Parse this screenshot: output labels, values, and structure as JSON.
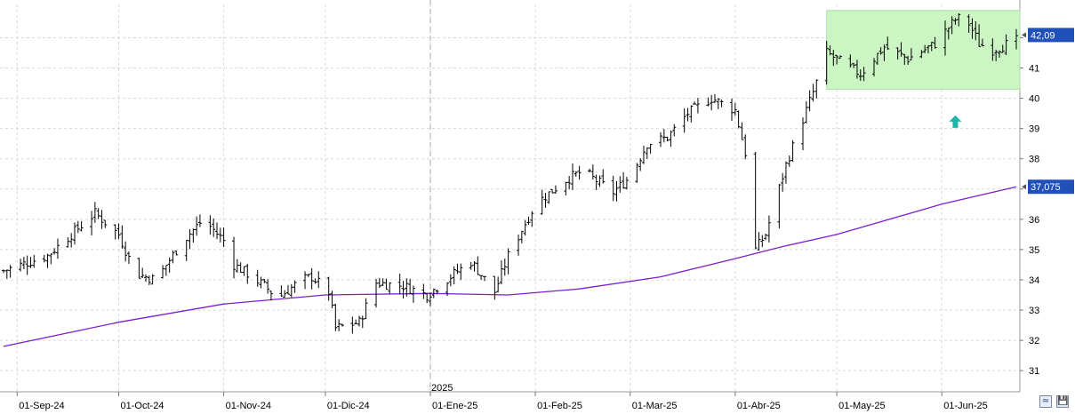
{
  "chart_data": {
    "type": "ohlc",
    "grid": true,
    "ylim": [
      30.3,
      43.1
    ],
    "y_ticks": [
      "31",
      "32",
      "33",
      "34",
      "35",
      "36",
      "37",
      "38",
      "39",
      "40",
      "41",
      "42"
    ],
    "x_labels": [
      {
        "date": "2024-09-01",
        "label": "01-Sep-24"
      },
      {
        "date": "2024-10-01",
        "label": "01-Oct-24"
      },
      {
        "date": "2024-11-01",
        "label": "01-Nov-24"
      },
      {
        "date": "2024-12-01",
        "label": "01-Dic-24"
      },
      {
        "date": "2025-01-01",
        "label": "01-Ene-25"
      },
      {
        "date": "2025-02-01",
        "label": "01-Feb-25"
      },
      {
        "date": "2025-03-01",
        "label": "01-Mar-25"
      },
      {
        "date": "2025-04-01",
        "label": "01-Abr-25"
      },
      {
        "date": "2025-05-01",
        "label": "01-May-25"
      },
      {
        "date": "2025-06-01",
        "label": "01-Jun-25"
      }
    ],
    "year_marker": {
      "date": "2025-01-01",
      "label": "2025"
    },
    "date_range": [
      "2024-08-28",
      "2025-06-23"
    ],
    "price_key_points": [
      [
        "2024-08-28",
        34.3
      ],
      [
        "2024-09-10",
        34.8
      ],
      [
        "2024-09-24",
        36.2
      ],
      [
        "2024-10-01",
        35.5
      ],
      [
        "2024-10-06",
        34.2
      ],
      [
        "2024-10-12",
        34.0
      ],
      [
        "2024-10-20",
        35.3
      ],
      [
        "2024-10-26",
        36.0
      ],
      [
        "2024-11-01",
        35.3
      ],
      [
        "2024-11-04",
        34.5
      ],
      [
        "2024-11-08",
        34.2
      ],
      [
        "2024-11-13",
        33.8
      ],
      [
        "2024-11-17",
        33.4
      ],
      [
        "2024-11-24",
        34.0
      ],
      [
        "2024-11-27",
        34.1
      ],
      [
        "2024-12-02",
        33.6
      ],
      [
        "2024-12-04",
        32.4
      ],
      [
        "2024-12-11",
        32.6
      ],
      [
        "2024-12-16",
        33.9
      ],
      [
        "2024-12-24",
        33.8
      ],
      [
        "2024-12-31",
        33.5
      ],
      [
        "2025-01-08",
        34.2
      ],
      [
        "2025-01-13",
        34.6
      ],
      [
        "2025-01-20",
        33.6
      ],
      [
        "2025-01-24",
        34.8
      ],
      [
        "2025-02-01",
        36.5
      ],
      [
        "2025-02-10",
        37.3
      ],
      [
        "2025-02-15",
        37.6
      ],
      [
        "2025-02-20",
        37.2
      ],
      [
        "2025-02-24",
        36.9
      ],
      [
        "2025-03-01",
        37.4
      ],
      [
        "2025-03-06",
        38.5
      ],
      [
        "2025-03-12",
        38.7
      ],
      [
        "2025-03-18",
        39.5
      ],
      [
        "2025-03-25",
        40.0
      ],
      [
        "2025-04-01",
        39.6
      ],
      [
        "2025-04-04",
        38.2
      ],
      [
        "2025-04-07",
        35.0
      ],
      [
        "2025-04-10",
        35.5
      ],
      [
        "2025-04-16",
        37.8
      ],
      [
        "2025-04-24",
        40.2
      ],
      [
        "2025-04-28",
        41.5
      ],
      [
        "2025-05-05",
        41.0
      ],
      [
        "2025-05-08",
        40.8
      ],
      [
        "2025-05-15",
        41.7
      ],
      [
        "2025-05-22",
        41.3
      ],
      [
        "2025-05-30",
        41.8
      ],
      [
        "2025-06-05",
        42.6
      ],
      [
        "2025-06-08",
        42.7
      ],
      [
        "2025-06-12",
        41.8
      ],
      [
        "2025-06-16",
        41.6
      ],
      [
        "2025-06-23",
        41.9
      ]
    ],
    "moving_average": {
      "color": "#7a1fd1",
      "points": [
        [
          "2024-08-28",
          31.8
        ],
        [
          "2024-10-01",
          32.6
        ],
        [
          "2024-11-01",
          33.2
        ],
        [
          "2024-12-01",
          33.5
        ],
        [
          "2025-01-01",
          33.55
        ],
        [
          "2025-01-24",
          33.5
        ],
        [
          "2025-02-14",
          33.7
        ],
        [
          "2025-03-10",
          34.1
        ],
        [
          "2025-04-01",
          34.7
        ],
        [
          "2025-04-15",
          35.1
        ],
        [
          "2025-05-01",
          35.5
        ],
        [
          "2025-06-01",
          36.5
        ],
        [
          "2025-06-23",
          37.075
        ]
      ]
    },
    "last_price": {
      "value": 42.09,
      "label": "42,09",
      "color": "#2050b8"
    },
    "ma_label": {
      "value": 37.075,
      "label": "37,075",
      "color": "#2050b8"
    },
    "range_box": {
      "from": "2025-04-28",
      "to": "2025-06-23",
      "low": 40.3,
      "high": 42.9,
      "color": "#ccf5c4"
    },
    "signal_arrow": {
      "date": "2025-06-05",
      "value": 39.2,
      "direction": "up",
      "color": "#1fb5a8"
    }
  },
  "buttons": {
    "panel_icon": "≈",
    "save_icon": "💾"
  }
}
